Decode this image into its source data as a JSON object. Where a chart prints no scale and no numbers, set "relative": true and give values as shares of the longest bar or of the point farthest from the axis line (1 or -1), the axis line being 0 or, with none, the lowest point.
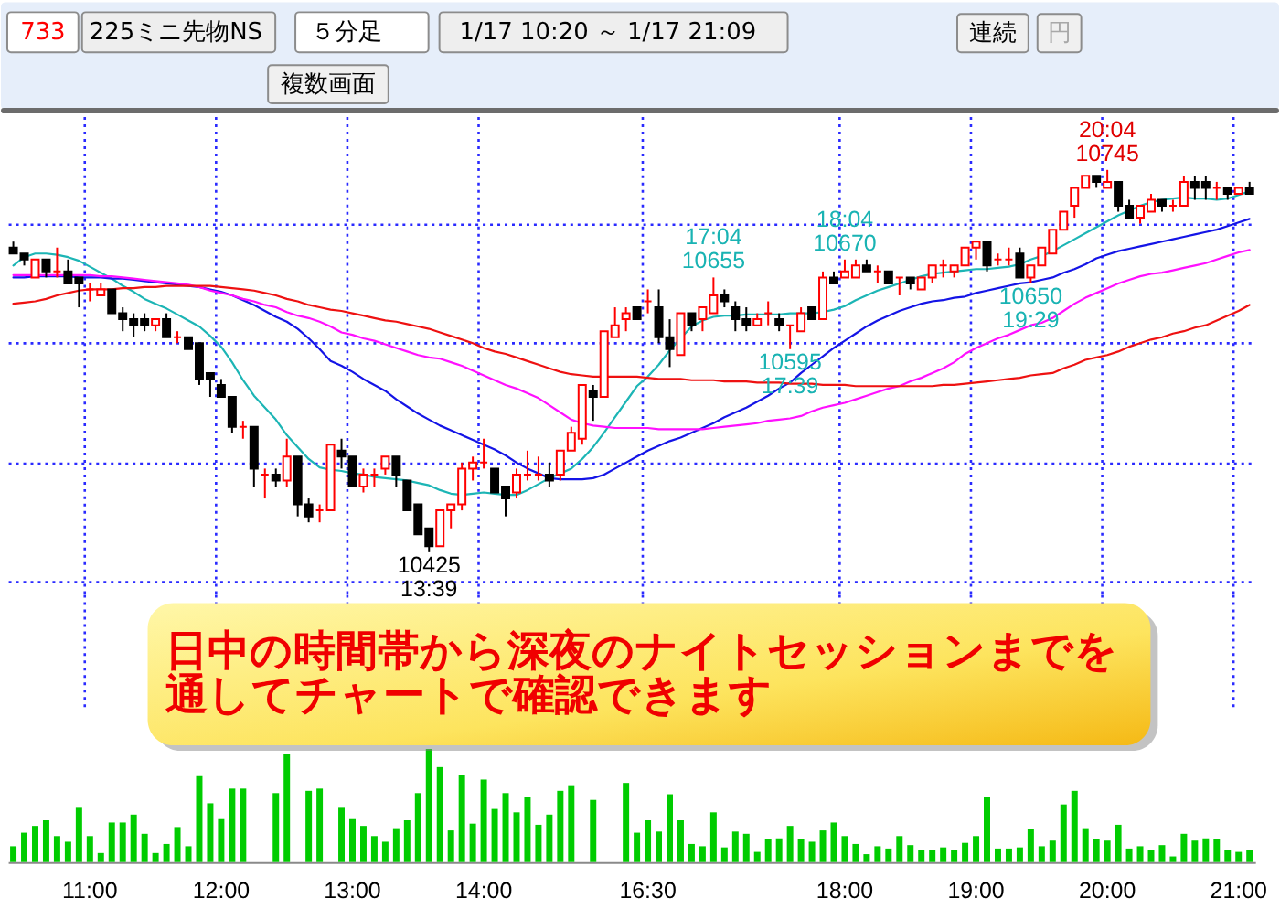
{
  "chart_data": [
    {
      "type": "other",
      "annotations": [
        "733",
        "225ミニ先物NS",
        "５分足",
        "1/17 10:20 ～ 1/17 21:09",
        "連続",
        "円",
        "複数画面"
      ]
    },
    {
      "type": "candlestick",
      "categories": [
        null,
        null,
        null,
        null,
        null,
        null,
        null,
        null,
        null,
        null,
        null,
        null,
        null,
        null,
        null,
        null,
        null,
        null,
        null,
        null,
        null,
        null,
        null,
        null,
        null,
        null,
        null,
        null,
        null,
        null,
        null,
        null,
        null,
        null,
        null,
        null,
        null,
        null,
        null,
        null,
        null,
        null,
        null,
        null,
        null,
        null,
        null,
        null,
        null,
        null,
        null,
        null,
        null,
        null,
        null,
        null,
        null,
        null,
        null,
        null,
        null,
        null,
        null,
        null,
        null,
        null,
        null,
        null,
        null,
        null,
        null,
        null,
        null,
        null,
        null,
        null,
        null,
        null,
        null,
        null,
        null,
        null,
        null,
        null,
        null,
        null,
        null,
        null,
        null,
        null,
        null,
        null,
        null,
        null,
        null,
        null,
        null,
        null,
        null,
        null,
        null,
        null,
        null,
        null,
        null,
        null,
        null,
        null,
        null,
        null,
        null,
        null,
        null,
        null
      ],
      "ohlc": [
        [
          10680,
          10685,
          10675,
          10675
        ],
        [
          10675,
          10675,
          10665,
          10670
        ],
        [
          10655,
          10670,
          10655,
          10670
        ],
        [
          10670,
          10670,
          10655,
          10660
        ],
        [
          10660,
          10680,
          10655,
          10660
        ],
        [
          10660,
          10670,
          10650,
          10650
        ],
        [
          10655,
          10655,
          10630,
          10650
        ],
        [
          10645,
          10650,
          10635,
          10645
        ],
        [
          10640,
          10650,
          10640,
          10645
        ],
        [
          10645,
          10645,
          10625,
          10625
        ],
        [
          10625,
          10630,
          10610,
          10620
        ],
        [
          10620,
          10625,
          10605,
          10615
        ],
        [
          10620,
          10625,
          10610,
          10615
        ],
        [
          10615,
          10620,
          10610,
          10620
        ],
        [
          10620,
          10625,
          10605,
          10605
        ],
        [
          10605,
          10610,
          10600,
          10605
        ],
        [
          10605,
          10605,
          10595,
          10595
        ],
        [
          10600,
          10600,
          10565,
          10570
        ],
        [
          10575,
          10575,
          10555,
          10570
        ],
        [
          10565,
          10570,
          10555,
          10555
        ],
        [
          10555,
          10555,
          10525,
          10530
        ],
        [
          10530,
          10535,
          10520,
          10530
        ],
        [
          10530,
          10530,
          10480,
          10495
        ],
        [
          10490,
          10495,
          10470,
          10490
        ],
        [
          10490,
          10495,
          10480,
          10485
        ],
        [
          10485,
          10520,
          10480,
          10505
        ],
        [
          10505,
          10505,
          10455,
          10465
        ],
        [
          10465,
          10470,
          10450,
          10455
        ],
        [
          10460,
          10465,
          10450,
          10460
        ],
        [
          10460,
          10515,
          10460,
          10515
        ],
        [
          10510,
          10520,
          10495,
          10505
        ],
        [
          10505,
          10505,
          10480,
          10480
        ],
        [
          10480,
          10495,
          10475,
          10490
        ],
        [
          10490,
          10495,
          10480,
          10490
        ],
        [
          10495,
          10505,
          10490,
          10505
        ],
        [
          10505,
          10505,
          10480,
          10490
        ],
        [
          10485,
          10485,
          10460,
          10460
        ],
        [
          10465,
          10465,
          10440,
          10440
        ],
        [
          10445,
          10445,
          10425,
          10430
        ],
        [
          10430,
          10460,
          10430,
          10460
        ],
        [
          10460,
          10465,
          10445,
          10465
        ],
        [
          10465,
          10500,
          10460,
          10495
        ],
        [
          10495,
          10505,
          10485,
          10500
        ],
        [
          10500,
          10520,
          10495,
          10500
        ],
        [
          10495,
          10495,
          10475,
          10475
        ],
        [
          10480,
          10480,
          10455,
          10470
        ],
        [
          10475,
          10495,
          10470,
          10490
        ],
        [
          10490,
          10510,
          10485,
          10490
        ],
        [
          10490,
          10505,
          10485,
          10490
        ],
        [
          10490,
          10500,
          10480,
          10485
        ],
        [
          10490,
          10510,
          10485,
          10510
        ],
        [
          10510,
          10530,
          10510,
          10525
        ],
        [
          10520,
          10565,
          10515,
          10565
        ],
        [
          10560,
          10565,
          10535,
          10555
        ],
        [
          10555,
          10610,
          10555,
          10610
        ],
        [
          10605,
          10630,
          10605,
          10615
        ],
        [
          10620,
          10630,
          10610,
          10625
        ],
        [
          10630,
          10630,
          10620,
          10620
        ],
        [
          10635,
          10645,
          10625,
          10635
        ],
        [
          10630,
          10645,
          10600,
          10605
        ],
        [
          10605,
          10620,
          10580,
          10595
        ],
        [
          10590,
          10625,
          10590,
          10625
        ],
        [
          10625,
          10625,
          10610,
          10615
        ],
        [
          10620,
          10630,
          10610,
          10630
        ],
        [
          10625,
          10655,
          10625,
          10640
        ],
        [
          10640,
          10645,
          10630,
          10635
        ],
        [
          10630,
          10635,
          10610,
          10620
        ],
        [
          10620,
          10630,
          10610,
          10615
        ],
        [
          10615,
          10625,
          10615,
          10620
        ],
        [
          10625,
          10635,
          10615,
          10625
        ],
        [
          10620,
          10625,
          10610,
          10615
        ],
        [
          10615,
          10615,
          10595,
          10615
        ],
        [
          10610,
          10630,
          10610,
          10625
        ],
        [
          10630,
          10630,
          10620,
          10620
        ],
        [
          10620,
          10660,
          10620,
          10655
        ],
        [
          10655,
          10660,
          10650,
          10650
        ],
        [
          10655,
          10670,
          10655,
          10660
        ],
        [
          10655,
          10670,
          10655,
          10665
        ],
        [
          10665,
          10670,
          10660,
          10660
        ],
        [
          10660,
          10665,
          10650,
          10660
        ],
        [
          10660,
          10660,
          10650,
          10650
        ],
        [
          10655,
          10655,
          10640,
          10655
        ],
        [
          10655,
          10655,
          10645,
          10650
        ],
        [
          10645,
          10655,
          10645,
          10655
        ],
        [
          10655,
          10665,
          10650,
          10665
        ],
        [
          10665,
          10670,
          10655,
          10665
        ],
        [
          10660,
          10665,
          10655,
          10665
        ],
        [
          10665,
          10680,
          10665,
          10680
        ],
        [
          10680,
          10685,
          10670,
          10685
        ],
        [
          10685,
          10685,
          10660,
          10665
        ],
        [
          10670,
          10675,
          10665,
          10670
        ],
        [
          10670,
          10680,
          10665,
          10670
        ],
        [
          10675,
          10680,
          10655,
          10655
        ],
        [
          10655,
          10665,
          10650,
          10665
        ],
        [
          10665,
          10680,
          10665,
          10680
        ],
        [
          10675,
          10695,
          10675,
          10695
        ],
        [
          10695,
          10710,
          10695,
          10710
        ],
        [
          10715,
          10730,
          10705,
          10730
        ],
        [
          10730,
          10740,
          10730,
          10740
        ],
        [
          10740,
          10740,
          10730,
          10735
        ],
        [
          10730,
          10745,
          10730,
          10735
        ],
        [
          10735,
          10735,
          10710,
          10715
        ],
        [
          10715,
          10720,
          10705,
          10705
        ],
        [
          10705,
          10715,
          10700,
          10715
        ],
        [
          10710,
          10725,
          10710,
          10720
        ],
        [
          10720,
          10720,
          10710,
          10715
        ],
        [
          10715,
          10720,
          10710,
          10715
        ],
        [
          10715,
          10740,
          10715,
          10735
        ],
        [
          10735,
          10740,
          10720,
          10730
        ],
        [
          10735,
          10740,
          10720,
          10730
        ],
        [
          10730,
          10735,
          10720,
          10730
        ],
        [
          10730,
          10730,
          10720,
          10725
        ],
        [
          10725,
          10730,
          10725,
          10730
        ],
        [
          10730,
          10735,
          10725,
          10725
        ]
      ],
      "colors": [
        "#000000",
        "#000000",
        "#ff0000",
        "#000000",
        "#ff0000",
        "#000000",
        "#000000",
        "#ff0000",
        "#ff0000",
        "#000000",
        "#000000",
        "#000000",
        "#000000",
        "#ff0000",
        "#000000",
        "#ff0000",
        "#000000",
        "#000000",
        "#000000",
        "#000000",
        "#000000",
        "#ff0000",
        "#000000",
        "#ff0000",
        "#000000",
        "#ff0000",
        "#000000",
        "#000000",
        "#ff0000",
        "#ff0000",
        "#000000",
        "#000000",
        "#ff0000",
        "#ff0000",
        "#ff0000",
        "#000000",
        "#000000",
        "#000000",
        "#000000",
        "#ff0000",
        "#ff0000",
        "#ff0000",
        "#ff0000",
        "#ff0000",
        "#000000",
        "#000000",
        "#ff0000",
        "#ff0000",
        "#ff0000",
        "#000000",
        "#ff0000",
        "#ff0000",
        "#ff0000",
        "#000000",
        "#ff0000",
        "#ff0000",
        "#ff0000",
        "#000000",
        "#ff0000",
        "#000000",
        "#000000",
        "#ff0000",
        "#000000",
        "#ff0000",
        "#ff0000",
        "#000000",
        "#000000",
        "#000000",
        "#ff0000",
        "#ff0000",
        "#000000",
        "#ff0000",
        "#ff0000",
        "#000000",
        "#ff0000",
        "#000000",
        "#ff0000",
        "#ff0000",
        "#000000",
        "#ff0000",
        "#000000",
        "#ff0000",
        "#000000",
        "#ff0000",
        "#ff0000",
        "#ff0000",
        "#ff0000",
        "#ff0000",
        "#ff0000",
        "#000000",
        "#ff0000",
        "#ff0000",
        "#000000",
        "#ff0000",
        "#ff0000",
        "#ff0000",
        "#ff0000",
        "#ff0000",
        "#ff0000",
        "#000000",
        "#ff0000",
        "#000000",
        "#000000",
        "#ff0000",
        "#ff0000",
        "#000000",
        "#ff0000",
        "#ff0000",
        "#000000",
        "#000000",
        "#ff0000",
        "#000000",
        "#ff0000",
        "#000000"
      ],
      "value_labels": [
        null,
        null,
        null,
        null,
        null,
        null,
        null,
        null,
        null,
        null,
        null,
        null,
        null,
        null,
        null,
        null,
        null,
        null,
        null,
        null,
        null,
        null,
        null,
        null,
        null,
        null,
        null,
        null,
        null,
        null,
        null,
        null,
        null,
        null,
        null,
        null,
        null,
        null,
        "10425\n13:39",
        null,
        null,
        null,
        null,
        null,
        null,
        null,
        null,
        null,
        null,
        null,
        null,
        null,
        null,
        null,
        null,
        null,
        null,
        null,
        null,
        null,
        null,
        null,
        null,
        null,
        "17:04\n10655",
        null,
        null,
        null,
        null,
        null,
        null,
        "10595\n17:39",
        null,
        null,
        null,
        null,
        "18:04\n10670",
        null,
        null,
        null,
        null,
        null,
        null,
        null,
        null,
        null,
        null,
        null,
        null,
        null,
        null,
        null,
        null,
        "10650\n19:29",
        null,
        null,
        null,
        null,
        null,
        null,
        "20:04\n10745",
        null,
        null,
        null,
        null,
        null,
        null,
        null,
        null,
        null,
        null,
        null,
        null,
        null
      ],
      "series": [
        {
          "type": "line",
          "color": "#1cb5b5",
          "values": [
            10665,
            10672,
            10675,
            10675,
            10674,
            10672,
            10669,
            10664,
            10659,
            10654,
            10648,
            10643,
            10637,
            10633,
            10629,
            10624,
            10619,
            10614,
            10606,
            10597,
            10584,
            10569,
            10556,
            10546,
            10536,
            10523,
            10513,
            10503,
            10496,
            10494,
            10493,
            10491,
            10490,
            10488,
            10487,
            10486,
            10485,
            10483,
            10481,
            10477,
            10474,
            10473,
            10474,
            10475,
            10474,
            10473,
            10473,
            10477,
            10482,
            10487,
            10491,
            10495,
            10503,
            10513,
            10525,
            10538,
            10551,
            10564,
            10572,
            10582,
            10594,
            10604,
            10614,
            10619,
            10622,
            10623,
            10623,
            10624,
            10624,
            10624,
            10624,
            10625,
            10625,
            10625,
            10626,
            10628,
            10631,
            10636,
            10640,
            10644,
            10647,
            10650,
            10653,
            10656,
            10658,
            10659,
            10660,
            10661,
            10662,
            10662,
            10663,
            10664,
            10666,
            10670,
            10673,
            10677,
            10682,
            10687,
            10692,
            10697,
            10702,
            10707,
            10711,
            10715,
            10718,
            10720,
            10721,
            10722,
            10721,
            10721,
            10720,
            10721,
            10724,
            10727
          ]
        },
        {
          "type": "line",
          "color": "#1414e6",
          "values": [
            10655,
            10655,
            10656,
            10656,
            10656,
            10656,
            10655,
            10655,
            10655,
            10654,
            10654,
            10653,
            10652,
            10651,
            10650,
            10649,
            10648,
            10647,
            10645,
            10643,
            10640,
            10636,
            10632,
            10627,
            10622,
            10618,
            10612,
            10604,
            10595,
            10585,
            10581,
            10576,
            10570,
            10565,
            10560,
            10553,
            10547,
            10541,
            10536,
            10531,
            10527,
            10523,
            10519,
            10515,
            10511,
            10506,
            10500,
            10495,
            10491,
            10487,
            10486,
            10486,
            10486,
            10487,
            10490,
            10495,
            10500,
            10505,
            10510,
            10514,
            10518,
            10521,
            10525,
            10529,
            10533,
            10538,
            10542,
            10546,
            10551,
            10556,
            10562,
            10567,
            10575,
            10582,
            10589,
            10596,
            10602,
            10608,
            10614,
            10619,
            10623,
            10627,
            10630,
            10633,
            10635,
            10636,
            10638,
            10639,
            10642,
            10644,
            10646,
            10648,
            10650,
            10651,
            10653,
            10655,
            10659,
            10662,
            10666,
            10671,
            10674,
            10677,
            10679,
            10681,
            10683,
            10685,
            10687,
            10689,
            10691,
            10693,
            10695,
            10698,
            10701,
            10704
          ]
        },
        {
          "type": "line",
          "color": "#ff10ff",
          "values": [
            10657,
            10657,
            10657,
            10657,
            10657,
            10657,
            10657,
            10657,
            10656,
            10656,
            10655,
            10654,
            10653,
            10652,
            10651,
            10650,
            10649,
            10647,
            10644,
            10642,
            10640,
            10637,
            10635,
            10632,
            10630,
            10626,
            10623,
            10621,
            10618,
            10614,
            10609,
            10607,
            10604,
            10602,
            10599,
            10596,
            10593,
            10590,
            10588,
            10587,
            10584,
            10581,
            10577,
            10573,
            10569,
            10565,
            10562,
            10558,
            10554,
            10548,
            10542,
            10536,
            10533,
            10531,
            10530,
            10529,
            10529,
            10529,
            10529,
            10528,
            10528,
            10528,
            10528,
            10528,
            10529,
            10530,
            10531,
            10532,
            10533,
            10535,
            10536,
            10537,
            10539,
            10543,
            10546,
            10548,
            10550,
            10553,
            10556,
            10559,
            10562,
            10564,
            10568,
            10571,
            10575,
            10579,
            10584,
            10591,
            10596,
            10600,
            10604,
            10607,
            10611,
            10615,
            10617,
            10621,
            10627,
            10633,
            10638,
            10642,
            10646,
            10650,
            10653,
            10656,
            10658,
            10659,
            10661,
            10663,
            10665,
            10667,
            10670,
            10673,
            10676,
            10678
          ]
        },
        {
          "type": "line",
          "color": "#ee1111",
          "values": [
            10633,
            10634,
            10635,
            10637,
            10640,
            10642,
            10644,
            10645,
            10645,
            10645,
            10646,
            10646,
            10647,
            10647,
            10648,
            10648,
            10648,
            10648,
            10648,
            10647,
            10646,
            10645,
            10644,
            10642,
            10640,
            10637,
            10635,
            10632,
            10630,
            10628,
            10627,
            10625,
            10623,
            10621,
            10619,
            10618,
            10616,
            10614,
            10612,
            10609,
            10606,
            10603,
            10600,
            10596,
            10593,
            10591,
            10588,
            10585,
            10582,
            10579,
            10576,
            10574,
            10573,
            10572,
            10572,
            10572,
            10572,
            10572,
            10571,
            10570,
            10570,
            10570,
            10569,
            10569,
            10569,
            10568,
            10568,
            10568,
            10567,
            10567,
            10567,
            10566,
            10566,
            10566,
            10565,
            10565,
            10565,
            10564,
            10564,
            10564,
            10564,
            10564,
            10564,
            10564,
            10564,
            10565,
            10565,
            10566,
            10567,
            10568,
            10569,
            10570,
            10571,
            10573,
            10574,
            10575,
            10579,
            10582,
            10586,
            10588,
            10590,
            10593,
            10597,
            10600,
            10603,
            10605,
            10608,
            10610,
            10613,
            10615,
            10619,
            10623,
            10627,
            10632
          ]
        }
      ],
      "ylim": [
        10390,
        10790
      ],
      "yticks": [
        {
          "value": 10400,
          "label": null
        },
        {
          "value": 10500,
          "label": null
        },
        {
          "value": 10600,
          "label": null
        },
        {
          "value": 10700,
          "label": null
        }
      ],
      "grid": true,
      "tick_labels": false
    },
    {
      "type": "bar",
      "categories": [
        null,
        null,
        null,
        null,
        null,
        null,
        null,
        "11:00",
        null,
        null,
        null,
        null,
        null,
        null,
        null,
        null,
        null,
        null,
        null,
        "12:00",
        null,
        null,
        null,
        null,
        null,
        null,
        null,
        null,
        null,
        null,
        null,
        "13:00",
        null,
        null,
        null,
        null,
        null,
        null,
        null,
        null,
        null,
        null,
        null,
        "14:00",
        null,
        null,
        null,
        null,
        null,
        null,
        null,
        null,
        null,
        null,
        null,
        null,
        null,
        null,
        "16:30",
        null,
        null,
        null,
        null,
        null,
        null,
        null,
        null,
        null,
        null,
        null,
        null,
        null,
        null,
        null,
        null,
        null,
        "18:00",
        null,
        null,
        null,
        null,
        null,
        null,
        null,
        null,
        null,
        null,
        null,
        "19:00",
        null,
        null,
        null,
        null,
        null,
        null,
        null,
        null,
        null,
        null,
        null,
        "20:00",
        null,
        null,
        null,
        null,
        null,
        null,
        null,
        null,
        null,
        null,
        null,
        "21:00",
        null
      ],
      "values": [
        0.14,
        0.26,
        0.32,
        0.37,
        0.23,
        0.18,
        0.48,
        0.23,
        0.08,
        0.35,
        0.35,
        0.42,
        0.25,
        0.08,
        0.16,
        0.31,
        0.14,
        0.76,
        0.52,
        0.38,
        0.65,
        0.65,
        null,
        null,
        0.61,
        0.96,
        null,
        0.63,
        0.65,
        null,
        0.48,
        0.38,
        0.32,
        0.23,
        0.18,
        0.3,
        0.37,
        0.61,
        1,
        0.84,
        0.28,
        0.77,
        0.34,
        0.73,
        0.47,
        0.61,
        0.44,
        0.58,
        0.33,
        0.42,
        0.63,
        0.68,
        null,
        0.55,
        null,
        null,
        0.7,
        0.26,
        0.37,
        0.27,
        0.6,
        0.37,
        0.16,
        0.14,
        0.44,
        0.13,
        0.27,
        0.25,
        0.09,
        0.2,
        0.21,
        0.32,
        0.2,
        0.18,
        0.28,
        0.35,
        0.23,
        0.16,
        0.07,
        0.14,
        0.12,
        0.23,
        0.15,
        0.11,
        0.11,
        0.13,
        0.11,
        0.17,
        0.23,
        0.58,
        0.12,
        0.12,
        0.13,
        0.29,
        0.14,
        0.19,
        0.51,
        0.63,
        0.3,
        0.2,
        0.19,
        0.33,
        0.12,
        0.14,
        0.11,
        0.15,
        0.05,
        0.25,
        0.19,
        0.21,
        0.2,
        0.11,
        0.09,
        0.11
      ],
      "color": "#00cc00",
      "relative": true,
      "grid": "x",
      "tick_labels": "x",
      "annotations": [
        "日中の時間帯から深夜のナイトセッションまでを",
        "通してチャートで確認できます"
      ]
    }
  ]
}
